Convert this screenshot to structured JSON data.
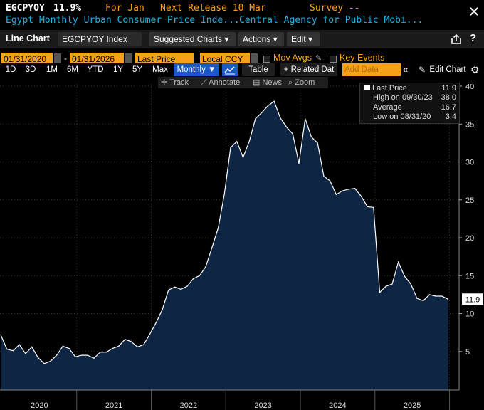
{
  "header": {
    "ticker": "EGCPYOY",
    "value": "11.9%",
    "for_label": "For Jan",
    "next_release": "Next Release 10 Mar",
    "survey": "Survey --",
    "name": "Egypt Monthly Urban Consumer Price Inde...",
    "source": "Central Agency for Public Mobi..."
  },
  "toolbar": {
    "chart_type": "Line Chart",
    "security": "EGCPYOY Index",
    "suggested": "Suggested Charts ▾",
    "actions": "Actions ▾",
    "edit": "Edit ▾"
  },
  "range": {
    "start": "01/31/2020",
    "end": "01/31/2026",
    "field": "Last Price",
    "currency": "Local CCY",
    "mov_avgs": "Mov Avgs",
    "key_events": "Key Events"
  },
  "periods": [
    "1D",
    "3D",
    "1M",
    "6M",
    "YTD",
    "1Y",
    "5Y",
    "Max"
  ],
  "frequency": "Monthly ▼",
  "table_label": "Table",
  "related": "+ Related Dat",
  "add_data": "Add Data",
  "edit_chart": "Edit Chart",
  "annot": {
    "track": "Track",
    "annotate": "Annotate",
    "news": "News",
    "zoom": "Zoom"
  },
  "legend": {
    "last_label": "Last Price",
    "last_value": "11.9",
    "high_label": "High on 09/30/23",
    "high_value": "38.0",
    "avg_label": "Average",
    "avg_value": "16.7",
    "low_label": "Low on 08/31/20",
    "low_value": "3.4"
  },
  "colors": {
    "accent": "#f7a11a",
    "fill": "#0f2544",
    "line": "#ffffff",
    "cyan": "#19b6e6",
    "active": "#1b57c6"
  },
  "chart_data": {
    "type": "area",
    "title": "",
    "x_labels": [
      "2020",
      "2021",
      "2022",
      "2023",
      "2024",
      "2025"
    ],
    "ylim": [
      0,
      40
    ],
    "yticks": [
      5,
      10,
      15,
      20,
      25,
      30,
      35,
      40
    ],
    "last_value_label": "11.9",
    "x": [
      "2020-01",
      "2020-02",
      "2020-03",
      "2020-04",
      "2020-05",
      "2020-06",
      "2020-07",
      "2020-08",
      "2020-09",
      "2020-10",
      "2020-11",
      "2020-12",
      "2021-01",
      "2021-02",
      "2021-03",
      "2021-04",
      "2021-05",
      "2021-06",
      "2021-07",
      "2021-08",
      "2021-09",
      "2021-10",
      "2021-11",
      "2021-12",
      "2022-01",
      "2022-02",
      "2022-03",
      "2022-04",
      "2022-05",
      "2022-06",
      "2022-07",
      "2022-08",
      "2022-09",
      "2022-10",
      "2022-11",
      "2022-12",
      "2023-01",
      "2023-02",
      "2023-03",
      "2023-04",
      "2023-05",
      "2023-06",
      "2023-07",
      "2023-08",
      "2023-09",
      "2023-10",
      "2023-11",
      "2023-12",
      "2024-01",
      "2024-02",
      "2024-03",
      "2024-04",
      "2024-05",
      "2024-06",
      "2024-07",
      "2024-08",
      "2024-09",
      "2024-10",
      "2024-11",
      "2024-12",
      "2025-01",
      "2025-02",
      "2025-03",
      "2025-04",
      "2025-05",
      "2025-06",
      "2025-07",
      "2025-08",
      "2025-09",
      "2025-10",
      "2025-11",
      "2025-12",
      "2026-01"
    ],
    "values": [
      7.2,
      5.3,
      5.1,
      5.9,
      4.7,
      5.6,
      4.2,
      3.4,
      3.7,
      4.5,
      5.7,
      5.4,
      4.3,
      4.5,
      4.5,
      4.1,
      4.9,
      4.9,
      5.4,
      5.7,
      6.6,
      6.3,
      5.6,
      5.9,
      7.3,
      8.8,
      10.5,
      13.1,
      13.5,
      13.2,
      13.6,
      14.6,
      15.0,
      16.2,
      18.7,
      21.3,
      25.8,
      31.9,
      32.7,
      30.6,
      32.7,
      35.7,
      36.5,
      37.4,
      38.0,
      35.8,
      34.6,
      33.7,
      29.8,
      35.7,
      33.3,
      32.5,
      28.1,
      27.5,
      25.7,
      26.2,
      26.4,
      26.5,
      25.5,
      24.1,
      24.0,
      12.8,
      13.6,
      13.9,
      16.8,
      14.9,
      13.9,
      12.0,
      11.7,
      12.5,
      12.3,
      12.3,
      11.9
    ]
  }
}
